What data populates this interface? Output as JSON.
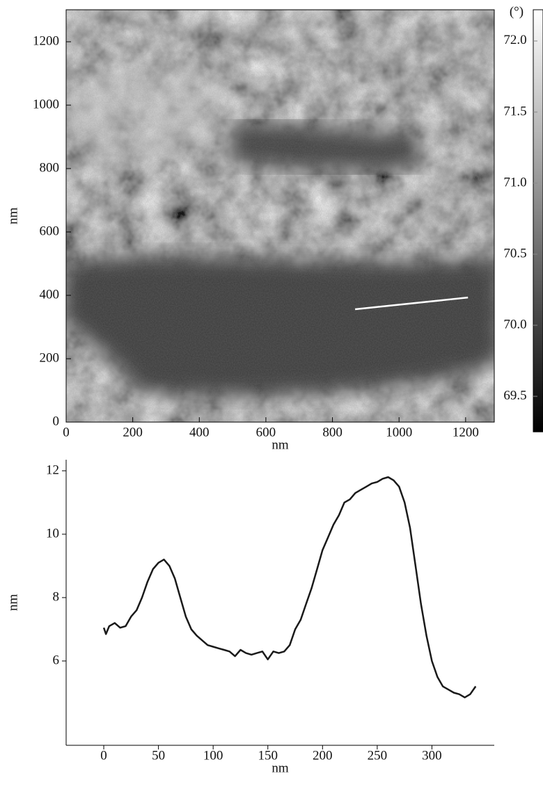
{
  "chart_data": [
    {
      "type": "image",
      "xlabel": "nm",
      "ylabel": "nm",
      "xlim": [
        0,
        1286
      ],
      "ylim": [
        0,
        1301
      ],
      "xticks": [
        0,
        200,
        400,
        600,
        800,
        1000,
        1200
      ],
      "yticks": [
        0,
        200,
        400,
        600,
        800,
        1000,
        1200
      ],
      "profile_line": {
        "x": [
          868,
          1207
        ],
        "y": [
          356,
          393
        ],
        "color": "#ffffff"
      },
      "colorbar": {
        "label": "(°)",
        "lim": [
          69.25,
          72.22
        ],
        "ticks": [
          69.5,
          {
            "value": 70,
            "label": "70.0"
          },
          70.5,
          {
            "value": 71,
            "label": "71.0"
          },
          71.5,
          {
            "value": 72,
            "label": "72.0"
          }
        ]
      }
    },
    {
      "type": "line",
      "xlabel": "nm",
      "ylabel": "nm",
      "xlim": [
        -34.4,
        357
      ],
      "ylim": [
        3.34,
        12.35
      ],
      "xticks": [
        0,
        50,
        100,
        150,
        200,
        250,
        300
      ],
      "yticks": [
        6,
        8,
        10,
        12
      ],
      "color": "#1a1a1a",
      "x": [
        0,
        2,
        5,
        10,
        15,
        20,
        25,
        30,
        35,
        40,
        45,
        50,
        55,
        60,
        65,
        70,
        75,
        80,
        85,
        90,
        95,
        100,
        105,
        110,
        115,
        120,
        125,
        130,
        135,
        140,
        145,
        150,
        155,
        160,
        165,
        170,
        175,
        180,
        185,
        190,
        195,
        200,
        205,
        210,
        215,
        220,
        225,
        230,
        235,
        240,
        245,
        250,
        255,
        260,
        265,
        270,
        275,
        280,
        285,
        290,
        295,
        300,
        305,
        310,
        315,
        320,
        325,
        330,
        335,
        340
      ],
      "values": [
        7.05,
        6.85,
        7.1,
        7.2,
        7.05,
        7.1,
        7.4,
        7.6,
        8.0,
        8.5,
        8.9,
        9.1,
        9.2,
        9.0,
        8.6,
        8.0,
        7.4,
        7.0,
        6.8,
        6.65,
        6.5,
        6.45,
        6.4,
        6.35,
        6.3,
        6.15,
        6.35,
        6.25,
        6.2,
        6.25,
        6.3,
        6.05,
        6.3,
        6.25,
        6.3,
        6.5,
        7.0,
        7.3,
        7.8,
        8.3,
        8.9,
        9.5,
        9.9,
        10.3,
        10.6,
        11.0,
        11.1,
        11.3,
        11.4,
        11.5,
        11.6,
        11.65,
        11.75,
        11.8,
        11.7,
        11.5,
        11.0,
        10.2,
        9.0,
        7.8,
        6.8,
        6.0,
        5.5,
        5.2,
        5.1,
        5.0,
        4.95,
        4.85,
        4.95,
        5.2
      ]
    }
  ]
}
